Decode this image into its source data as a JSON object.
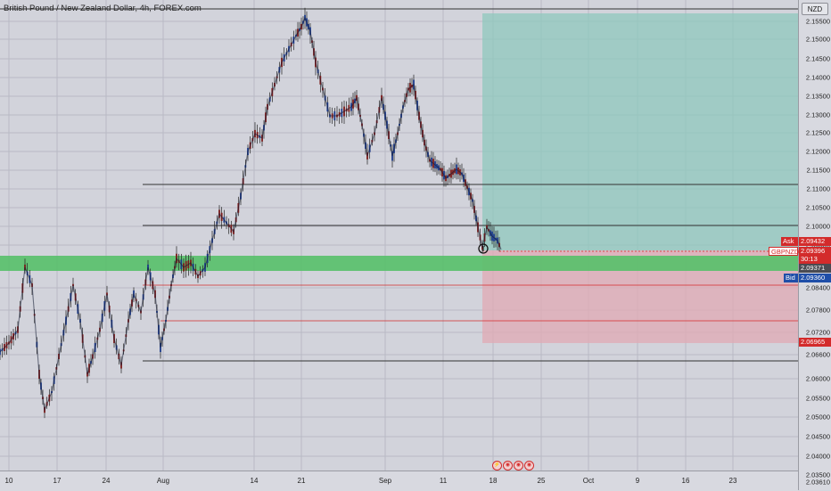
{
  "symbol_title": "British Pound / New Zealand Dollar, 4h, FOREX.com",
  "currency_button": "NZD",
  "price_axis": {
    "labels": [
      "2.15500",
      "2.15000",
      "2.14500",
      "2.14000",
      "2.13500",
      "2.13000",
      "2.12500",
      "2.12000",
      "2.11500",
      "2.11000",
      "2.10500",
      "2.10000",
      "2.09500",
      "2.08400",
      "2.07800",
      "2.07200",
      "2.06600",
      "2.06000",
      "2.05500",
      "2.05000",
      "2.04500",
      "2.04000",
      "2.03500"
    ],
    "bottom_label": "2.03610"
  },
  "time_axis": {
    "labels": [
      "10",
      "17",
      "24",
      "Aug",
      "14",
      "21",
      "Sep",
      "11",
      "18",
      "25",
      "Oct",
      "9",
      "16",
      "23"
    ]
  },
  "price_tags": {
    "ask_label": "Ask",
    "ask_value": "2.09432",
    "symbol_label": "GBPNZD",
    "last_value": "2.09396",
    "countdown": "30:13",
    "level_value": "2.09371",
    "bid_label": "Bid",
    "bid_value": "2.09360",
    "stop_value": "2.06965"
  },
  "event_icons": [
    "flash-icon",
    "event-icon",
    "event-icon",
    "event-icon"
  ],
  "colors": {
    "background": "#d2d3db",
    "up_candle": "#1c3a8a",
    "down_candle": "#7a1a1a",
    "target_zone": "#8fc8be",
    "stop_zone": "#e0aab4",
    "support_band": "#57c069",
    "ask_tag": "#d32b2b",
    "bid_tag": "#1f4ea8"
  }
}
